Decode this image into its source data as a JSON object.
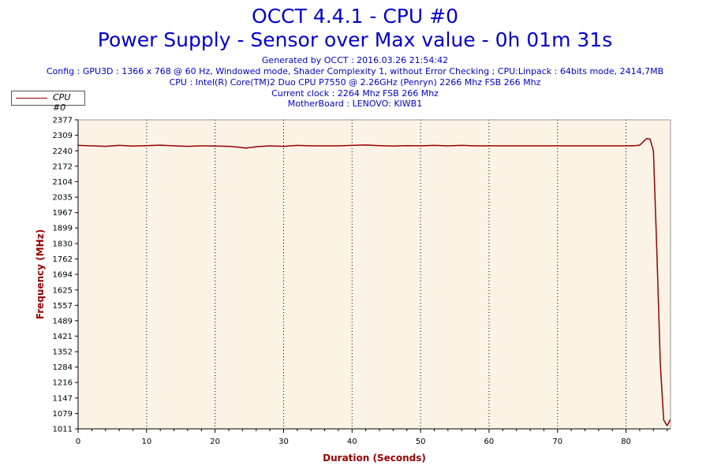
{
  "header": {
    "title_line1": "OCCT 4.4.1 - CPU #0",
    "title_line2": "Power Supply - Sensor over Max value - 0h 01m 31s",
    "generated": "Generated by OCCT : 2016.03.26 21:54:42",
    "config": "Config : GPU3D : 1366 x 768 @ 60 Hz, Windowed mode, Shader Complexity 1, without Error Checking ; CPU:Linpack : 64bits mode, 2414,7MB",
    "cpu": "CPU : Intel(R) Core(TM)2 Duo CPU P7550 @ 2.26GHz (Penryn) 2266 Mhz FSB 266 Mhz",
    "clock": "Current clock : 2264 Mhz FSB 266 Mhz",
    "motherboard": "MotherBoard : LENOVO: KIWB1"
  },
  "colors": {
    "title": "#0000cc",
    "series": "#990000",
    "plot_bg": "#faf3e6",
    "axis_title": "#990000"
  },
  "chart_data": {
    "type": "line",
    "xlabel": "Duration (Seconds)",
    "ylabel": "Frequency (MHz)",
    "xlim": [
      0,
      86.5
    ],
    "ylim": [
      1011,
      2377
    ],
    "x_ticks": [
      0,
      10,
      20,
      30,
      40,
      50,
      60,
      70,
      80
    ],
    "y_ticks": [
      1011,
      1079,
      1147,
      1216,
      1284,
      1352,
      1421,
      1489,
      1557,
      1625,
      1694,
      1762,
      1830,
      1899,
      1967,
      2035,
      2104,
      2172,
      2240,
      2309,
      2377
    ],
    "grid": true,
    "legend_position": "top-left",
    "series": [
      {
        "name": "CPU #0",
        "x": [
          0,
          2,
          4,
          6,
          8,
          10,
          12,
          14,
          16,
          18,
          20,
          22,
          23.5,
          24.5,
          26,
          28,
          30,
          32,
          34,
          36,
          38,
          40,
          42,
          44,
          46,
          48,
          50,
          52,
          54,
          56,
          58,
          60,
          62,
          64,
          66,
          68,
          70,
          72,
          74,
          76,
          78,
          80,
          81,
          82,
          82.5,
          83,
          83.5,
          84,
          84.5,
          85,
          85.5,
          86,
          86.5
        ],
        "y": [
          2264,
          2262,
          2260,
          2264,
          2261,
          2263,
          2265,
          2262,
          2260,
          2262,
          2261,
          2260,
          2256,
          2252,
          2258,
          2262,
          2260,
          2264,
          2262,
          2262,
          2262,
          2264,
          2266,
          2263,
          2261,
          2263,
          2262,
          2264,
          2262,
          2264,
          2262,
          2262,
          2262,
          2262,
          2262,
          2262,
          2262,
          2262,
          2262,
          2262,
          2262,
          2262,
          2262,
          2265,
          2280,
          2294,
          2292,
          2240,
          1800,
          1300,
          1050,
          1025,
          1055
        ]
      }
    ]
  }
}
